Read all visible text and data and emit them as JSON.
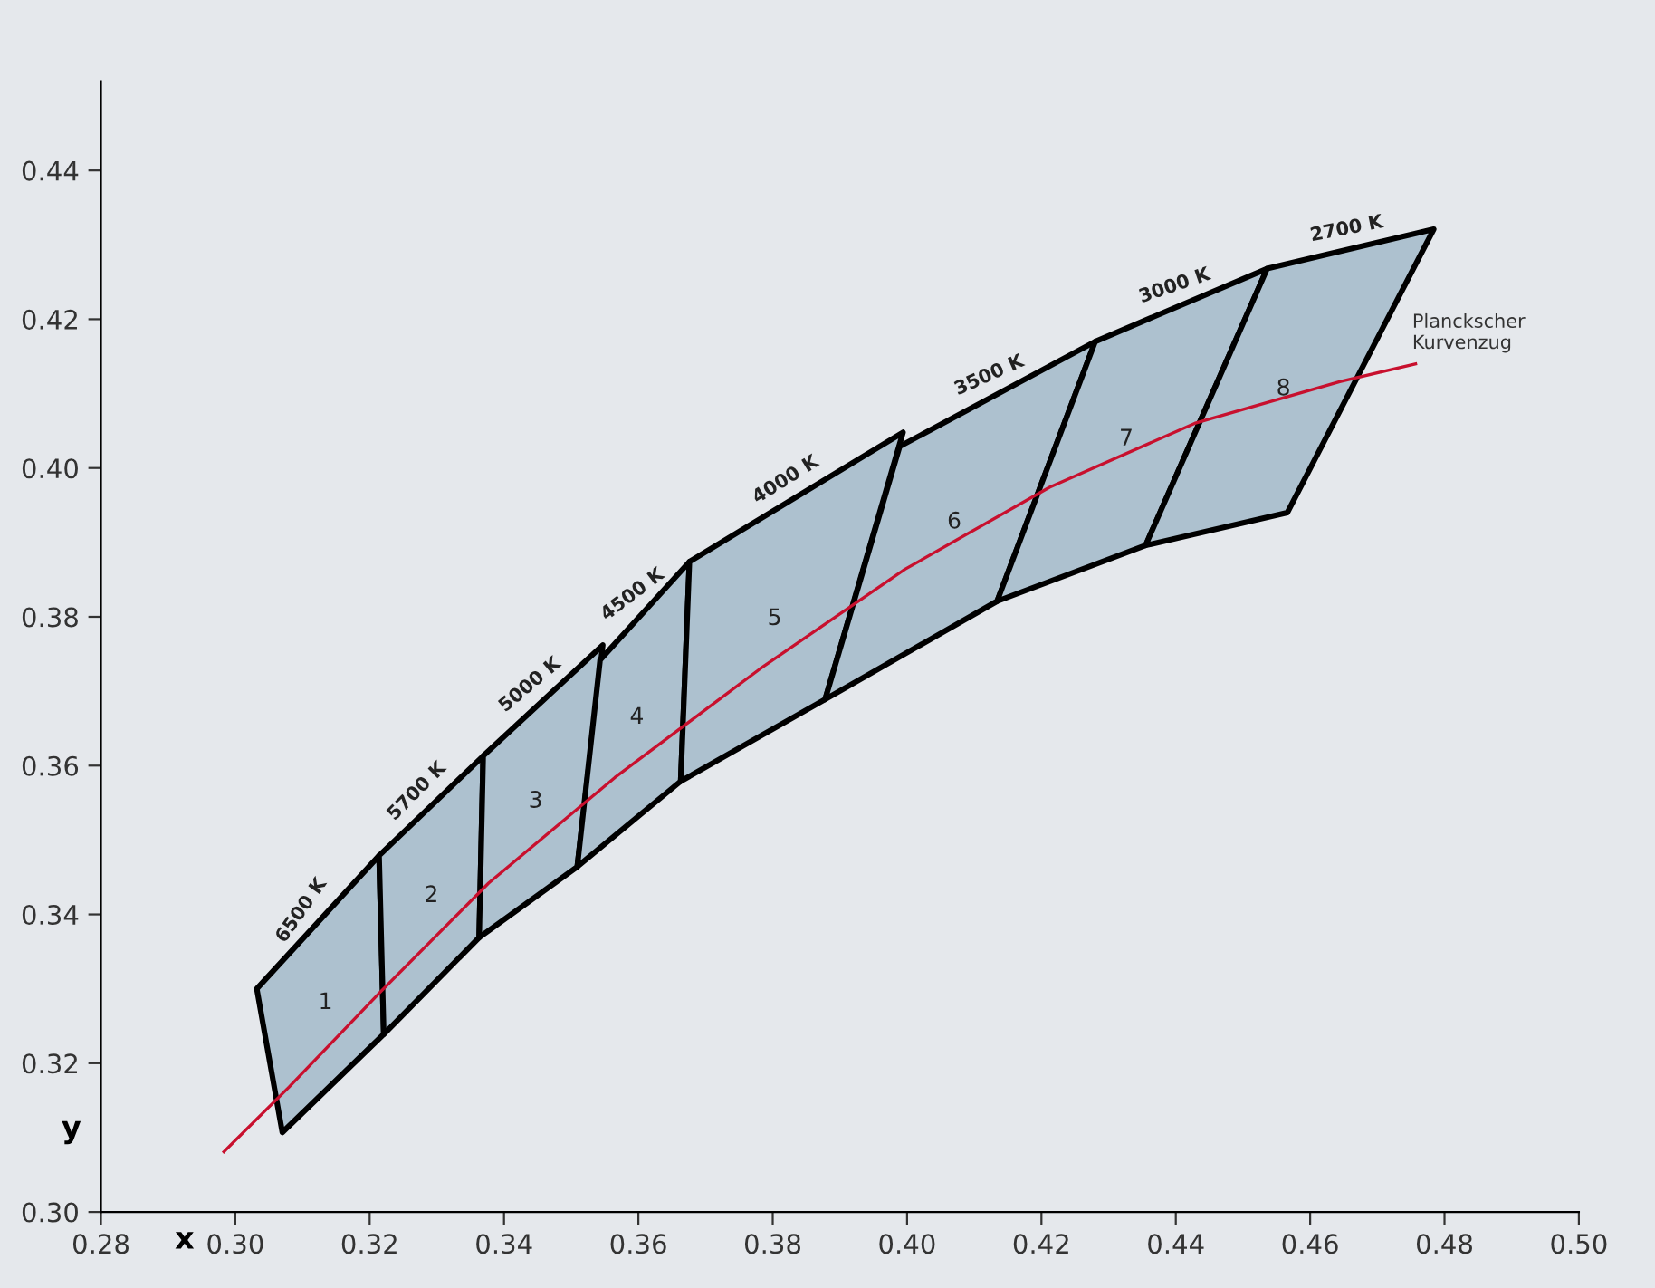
{
  "chart_data": {
    "type": "area",
    "xlabel": "x",
    "ylabel": "y",
    "xlim": [
      0.28,
      0.5
    ],
    "ylim": [
      0.3,
      0.452
    ],
    "xticks": [
      {
        "value": 0.28,
        "label": "0.28"
      },
      {
        "value": 0.3,
        "label": "0.30"
      },
      {
        "value": 0.32,
        "label": "0.32"
      },
      {
        "value": 0.34,
        "label": "0.34"
      },
      {
        "value": 0.36,
        "label": "0.36"
      },
      {
        "value": 0.38,
        "label": "0.38"
      },
      {
        "value": 0.4,
        "label": "0.40"
      },
      {
        "value": 0.42,
        "label": "0.42"
      },
      {
        "value": 0.44,
        "label": "0.44"
      },
      {
        "value": 0.46,
        "label": "0.46"
      },
      {
        "value": 0.48,
        "label": "0.48"
      },
      {
        "value": 0.5,
        "label": "0.50"
      }
    ],
    "yticks": [
      {
        "value": 0.3,
        "label": "0.30"
      },
      {
        "value": 0.32,
        "label": "0.32"
      },
      {
        "value": 0.34,
        "label": "0.34"
      },
      {
        "value": 0.36,
        "label": "0.36"
      },
      {
        "value": 0.38,
        "label": "0.38"
      },
      {
        "value": 0.4,
        "label": "0.40"
      },
      {
        "value": 0.42,
        "label": "0.42"
      },
      {
        "value": 0.44,
        "label": "0.44"
      }
    ],
    "grid": false,
    "legend": false,
    "series": [
      {
        "name": "1",
        "color": "#adc1cf",
        "x": [
          0.3032,
          0.3214,
          0.3221,
          0.307
        ],
        "values": [
          0.33,
          0.3479,
          0.3239,
          0.3107
        ]
      },
      {
        "name": "2",
        "color": "#adc1cf",
        "x": [
          0.3214,
          0.3369,
          0.3363,
          0.3221
        ],
        "values": [
          0.3479,
          0.3613,
          0.3369,
          0.3239
        ]
      },
      {
        "name": "3",
        "color": "#adc1cf",
        "x": [
          0.3369,
          0.3547,
          0.3509,
          0.3363
        ],
        "values": [
          0.3613,
          0.3762,
          0.3464,
          0.3369
        ]
      },
      {
        "name": "4",
        "color": "#adc1cf",
        "x": [
          0.3543,
          0.3676,
          0.3663,
          0.3509
        ],
        "values": [
          0.3742,
          0.3874,
          0.3579,
          0.3464
        ]
      },
      {
        "name": "5",
        "color": "#adc1cf",
        "x": [
          0.3676,
          0.3994,
          0.3878,
          0.3663
        ],
        "values": [
          0.3874,
          0.4048,
          0.3689,
          0.3579
        ]
      },
      {
        "name": "6",
        "color": "#adc1cf",
        "x": [
          0.3989,
          0.428,
          0.4134,
          0.3878
        ],
        "values": [
          0.4029,
          0.417,
          0.3821,
          0.3689
        ]
      },
      {
        "name": "7",
        "color": "#adc1cf",
        "x": [
          0.428,
          0.4536,
          0.4355,
          0.4134
        ],
        "values": [
          0.417,
          0.4268,
          0.3896,
          0.3821
        ]
      },
      {
        "name": "8",
        "color": "#adc1cf",
        "x": [
          0.4536,
          0.4784,
          0.4566,
          0.4355
        ],
        "values": [
          0.4268,
          0.4321,
          0.394,
          0.3896
        ]
      },
      {
        "name": "Planckscher\nKurvenzug",
        "type": "line",
        "color": "#c8102e",
        "x": [
          0.2983,
          0.308,
          0.3215,
          0.3377,
          0.3565,
          0.3781,
          0.3997,
          0.4212,
          0.4428,
          0.4644,
          0.4757
        ],
        "values": [
          0.3081,
          0.3168,
          0.3295,
          0.3442,
          0.3584,
          0.373,
          0.3864,
          0.3974,
          0.406,
          0.4116,
          0.414
        ]
      }
    ],
    "annotations": [
      {
        "text": "6500 K",
        "x": 0.3123,
        "y": 0.33895
      },
      {
        "text": "5700 K",
        "x": 0.32915,
        "y": 0.3546
      },
      {
        "text": "5000 K",
        "x": 0.3458,
        "y": 0.36875
      },
      {
        "text": "4500 K",
        "x": 0.36095,
        "y": 0.3808
      },
      {
        "text": "4000 K",
        "x": 0.3835,
        "y": 0.3961
      },
      {
        "text": "3500 K",
        "x": 0.41345,
        "y": 0.40995
      },
      {
        "text": "3000 K",
        "x": 0.4408,
        "y": 0.4219
      },
      {
        "text": "2700 K",
        "x": 0.466,
        "y": 0.42945
      }
    ]
  }
}
